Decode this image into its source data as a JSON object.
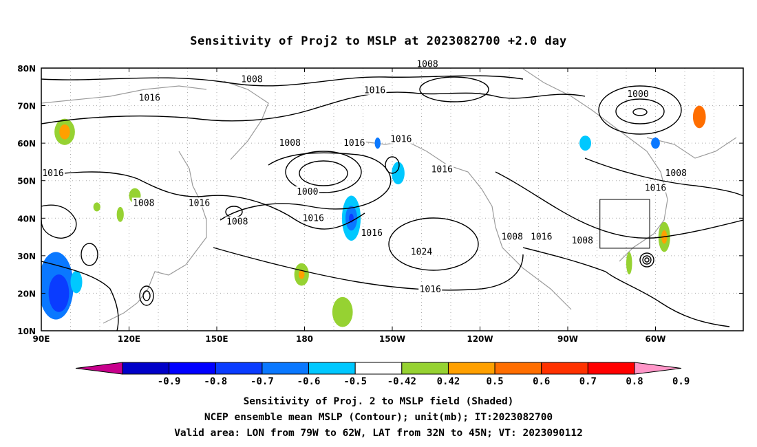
{
  "title": "Sensitivity of Proj2 to MSLP at 2023082700 +2.0 day",
  "map": {
    "lat_labels": [
      "80N",
      "70N",
      "60N",
      "50N",
      "40N",
      "30N",
      "20N",
      "10N"
    ],
    "lon_labels": [
      "90E",
      "120E",
      "150E",
      "180",
      "150W",
      "120W",
      "90W",
      "60W"
    ],
    "valid_box": {
      "lon_min_W": 79,
      "lon_max_W": 62,
      "lat_min_N": 32,
      "lat_max_N": 45
    },
    "contour_labels": [
      {
        "text": "1008",
        "lon": 162,
        "lat": 77
      },
      {
        "text": "1008",
        "lon": 222,
        "lat": 81
      },
      {
        "text": "1016",
        "lon": 127,
        "lat": 72
      },
      {
        "text": "1016",
        "lon": 204,
        "lat": 74
      },
      {
        "text": "1000",
        "lon": 294,
        "lat": 73
      },
      {
        "text": "1008",
        "lon": 175,
        "lat": 60
      },
      {
        "text": "1016",
        "lon": 197,
        "lat": 60
      },
      {
        "text": "1016",
        "lon": 213,
        "lat": 61
      },
      {
        "text": "1016",
        "lon": 227,
        "lat": 53
      },
      {
        "text": "1016",
        "lon": 94,
        "lat": 52
      },
      {
        "text": "1000",
        "lon": 181,
        "lat": 47
      },
      {
        "text": "1008",
        "lon": 125,
        "lat": 44
      },
      {
        "text": "1016",
        "lon": 144,
        "lat": 44
      },
      {
        "text": "1008",
        "lon": 157,
        "lat": 39
      },
      {
        "text": "1016",
        "lon": 183,
        "lat": 40
      },
      {
        "text": "1016",
        "lon": 203,
        "lat": 36
      },
      {
        "text": "1024",
        "lon": 220,
        "lat": 31
      },
      {
        "text": "1016",
        "lon": 223,
        "lat": 21
      },
      {
        "text": "1008",
        "lon": 251,
        "lat": 35
      },
      {
        "text": "1016",
        "lon": 261,
        "lat": 35
      },
      {
        "text": "1008",
        "lon": 275,
        "lat": 34
      },
      {
        "text": "1008",
        "lon": 307,
        "lat": 52
      },
      {
        "text": "1016",
        "lon": 300,
        "lat": 48
      }
    ]
  },
  "colorbar": {
    "labels": [
      "-0.9",
      "-0.8",
      "-0.7",
      "-0.6",
      "-0.5",
      "-0.42",
      "0.42",
      "0.5",
      "0.6",
      "0.7",
      "0.8",
      "0.9"
    ],
    "colors": [
      "#c8008c",
      "#0000c8",
      "#0000ff",
      "#0a3cff",
      "#0a78ff",
      "#00c8ff",
      "#ffffff",
      "#96d232",
      "#ffa000",
      "#ff6e00",
      "#ff3200",
      "#ff0000",
      "#ff96c8"
    ]
  },
  "captions": {
    "line1": "Sensitivity of Proj. 2 to MSLP field (Shaded)",
    "line2": "NCEP ensemble mean MSLP (Contour); unit(mb); IT:2023082700",
    "line3": "Valid area: LON from 79W to 62W, LAT from 32N to 45N; VT: 2023090112"
  },
  "shaded_regions": [
    {
      "lon": 98,
      "lat": 63,
      "rlon": 3.5,
      "rlat": 3.5,
      "color": "#96d232"
    },
    {
      "lon": 98,
      "lat": 63,
      "rlon": 1.8,
      "rlat": 2,
      "color": "#ffa000"
    },
    {
      "lon": 95,
      "lat": 22,
      "rlon": 6,
      "rlat": 9,
      "color": "#0a78ff"
    },
    {
      "lon": 96,
      "lat": 20,
      "rlon": 3.5,
      "rlat": 5,
      "color": "#0a3cff"
    },
    {
      "lon": 102,
      "lat": 23,
      "rlon": 2,
      "rlat": 3,
      "color": "#00c8ff"
    },
    {
      "lon": 117,
      "lat": 41,
      "rlon": 1.2,
      "rlat": 2,
      "color": "#96d232"
    },
    {
      "lon": 122,
      "lat": 46,
      "rlon": 2,
      "rlat": 2,
      "color": "#96d232"
    },
    {
      "lon": 109,
      "lat": 43,
      "rlon": 1.2,
      "rlat": 1.2,
      "color": "#96d232"
    },
    {
      "lon": 179,
      "lat": 25,
      "rlon": 2.5,
      "rlat": 3,
      "color": "#96d232"
    },
    {
      "lon": 179,
      "lat": 25,
      "rlon": 1,
      "rlat": 1.2,
      "color": "#ffa000"
    },
    {
      "lon": 193,
      "lat": 15,
      "rlon": 3.5,
      "rlat": 4,
      "color": "#96d232"
    },
    {
      "lon": 196,
      "lat": 40,
      "rlon": 3.2,
      "rlat": 6,
      "color": "#00c8ff"
    },
    {
      "lon": 196,
      "lat": 40,
      "rlon": 2,
      "rlat": 3.3,
      "color": "#0a78ff"
    },
    {
      "lon": 196,
      "lat": 40,
      "rlon": 0.8,
      "rlat": 1.2,
      "color": "#0a3cff"
    },
    {
      "lon": 212,
      "lat": 52,
      "rlon": 2.2,
      "rlat": 3,
      "color": "#00c8ff"
    },
    {
      "lon": 205,
      "lat": 60,
      "rlon": 1,
      "rlat": 1.5,
      "color": "#0a78ff"
    },
    {
      "lon": 300,
      "lat": 60,
      "rlon": 1.5,
      "rlat": 1.5,
      "color": "#0a78ff"
    },
    {
      "lon": 276,
      "lat": 60,
      "rlon": 2,
      "rlat": 2,
      "color": "#00c8ff"
    },
    {
      "lon": 303,
      "lat": 35,
      "rlon": 2,
      "rlat": 4,
      "color": "#96d232"
    },
    {
      "lon": 303,
      "lat": 35,
      "rlon": 1,
      "rlat": 1.8,
      "color": "#ffa000"
    },
    {
      "lon": 315,
      "lat": 67,
      "rlon": 2.2,
      "rlat": 3,
      "color": "#ff6e00"
    },
    {
      "lon": 291,
      "lat": 28,
      "rlon": 1,
      "rlat": 3,
      "color": "#96d232"
    }
  ]
}
